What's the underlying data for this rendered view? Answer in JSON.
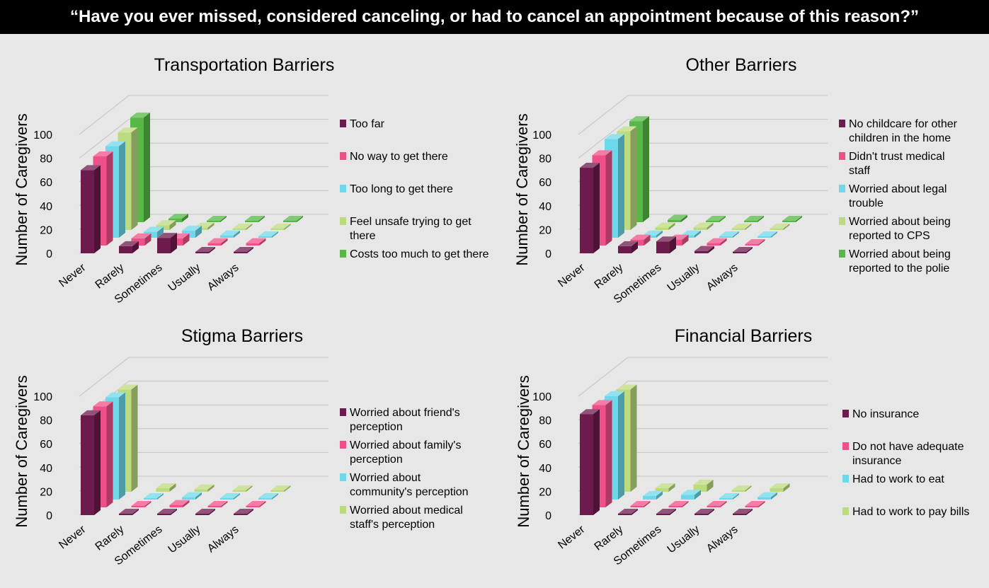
{
  "title": "“Have you ever missed, considered canceling, or had to cancel an appointment because of this reason?”",
  "chart_data": [
    {
      "type": "bar",
      "title": "Transportation Barriers",
      "ylabel": "Number of Caregivers",
      "yticks": [
        0,
        20,
        40,
        60,
        80,
        100
      ],
      "ylim": [
        0,
        100
      ],
      "grid": true,
      "legend_position": "right",
      "categories": [
        "Never",
        "Rarely",
        "Sometimes",
        "Usually",
        "Always"
      ],
      "series": [
        {
          "name": "Too far",
          "color": "#6d1a4d",
          "values": [
            70,
            6,
            13,
            1,
            1
          ]
        },
        {
          "name": "No way to get there",
          "color": "#f0508a",
          "values": [
            75,
            6,
            6,
            2,
            2
          ]
        },
        {
          "name": "Too long to get there",
          "color": "#6dd8ea",
          "values": [
            77,
            5,
            6,
            2,
            1
          ]
        },
        {
          "name": "Feel unsafe trying to get there",
          "color": "#bcda7e",
          "values": [
            82,
            4,
            2,
            1,
            1
          ]
        },
        {
          "name": "Costs too much to get there",
          "color": "#57b847",
          "values": [
            88,
            3,
            1,
            1,
            1
          ]
        }
      ],
      "legend": [
        {
          "label": "Too far"
        },
        {
          "label": "No way to get there"
        },
        {
          "label": "Too long to get there"
        },
        {
          "label": "Feel unsafe trying to get there"
        },
        {
          "label": "Costs too much to get there"
        }
      ]
    },
    {
      "type": "bar",
      "title": "Other Barriers",
      "ylabel": "Number of Caregivers",
      "yticks": [
        0,
        20,
        40,
        60,
        80,
        100
      ],
      "ylim": [
        0,
        100
      ],
      "grid": true,
      "legend_position": "right",
      "categories": [
        "Never",
        "Rarely",
        "Sometimes",
        "Usually",
        "Always"
      ],
      "series": [
        {
          "name": "No childcare for other children in the home",
          "color": "#6d1a4d",
          "values": [
            72,
            6,
            10,
            2,
            1
          ]
        },
        {
          "name": "Didn't trust medical staff",
          "color": "#f0508a",
          "values": [
            76,
            5,
            5,
            2,
            1
          ]
        },
        {
          "name": "Worried about legal trouble",
          "color": "#6dd8ea",
          "values": [
            83,
            2,
            2,
            1,
            1
          ]
        },
        {
          "name": "Worried about being reported to CPS",
          "color": "#bcda7e",
          "values": [
            83,
            2,
            2,
            1,
            1
          ]
        },
        {
          "name": "Worried about being reported to the polie",
          "color": "#57b847",
          "values": [
            85,
            2,
            1,
            1,
            1
          ]
        }
      ],
      "legend": [
        {
          "label": "No childcare for other children in the home"
        },
        {
          "label": "Didn't trust medical staff"
        },
        {
          "label": "Worried about legal trouble"
        },
        {
          "label": "Worried about being reported to CPS"
        },
        {
          "label": "Worried about being reported to the polie"
        }
      ]
    },
    {
      "type": "bar",
      "title": "Stigma Barriers",
      "ylabel": "Number of Caregivers",
      "yticks": [
        0,
        20,
        40,
        60,
        80,
        100
      ],
      "ylim": [
        0,
        100
      ],
      "grid": true,
      "legend_position": "right",
      "categories": [
        "Never",
        "Rarely",
        "Sometimes",
        "Usually",
        "Always"
      ],
      "series": [
        {
          "name": "Worried about friend's perception",
          "color": "#6d1a4d",
          "values": [
            84,
            1,
            1,
            1,
            1
          ]
        },
        {
          "name": "Worried about family's perception",
          "color": "#f0508a",
          "values": [
            85,
            1,
            2,
            1,
            1
          ]
        },
        {
          "name": "Worried about community's perception",
          "color": "#6dd8ea",
          "values": [
            86,
            1,
            2,
            1,
            1
          ]
        },
        {
          "name": "Worried about medical staff's perception",
          "color": "#bcda7e",
          "values": [
            86,
            3,
            2,
            1,
            1
          ]
        }
      ],
      "legend": [
        {
          "label": "Worried about friend's perception"
        },
        {
          "label": "Worried about family's perception"
        },
        {
          "label": "Worried about community's perception"
        },
        {
          "label": "Worried about medical staff's perception"
        }
      ]
    },
    {
      "type": "bar",
      "title": "Financial Barriers",
      "ylabel": "Number of Caregivers",
      "yticks": [
        0,
        20,
        40,
        60,
        80,
        100
      ],
      "ylim": [
        0,
        100
      ],
      "grid": true,
      "legend_position": "right",
      "categories": [
        "Never",
        "Rarely",
        "Sometimes",
        "Usually",
        "Always"
      ],
      "series": [
        {
          "name": "No insurance",
          "color": "#6d1a4d",
          "values": [
            85,
            1,
            1,
            1,
            1
          ]
        },
        {
          "name": "Do not have adequate insurance",
          "color": "#f0508a",
          "values": [
            86,
            1,
            1,
            1,
            1
          ]
        },
        {
          "name": "Had to work to eat",
          "color": "#6dd8ea",
          "values": [
            87,
            3,
            4,
            1,
            2
          ]
        },
        {
          "name": "Had to work to pay bills",
          "color": "#bcda7e",
          "values": [
            86,
            3,
            6,
            1,
            3
          ]
        }
      ],
      "legend": [
        {
          "label": "No insurance"
        },
        {
          "label": "Do not have adequate insurance"
        },
        {
          "label": "Had to work to eat"
        },
        {
          "label": "Had to work to pay bills"
        }
      ]
    }
  ]
}
